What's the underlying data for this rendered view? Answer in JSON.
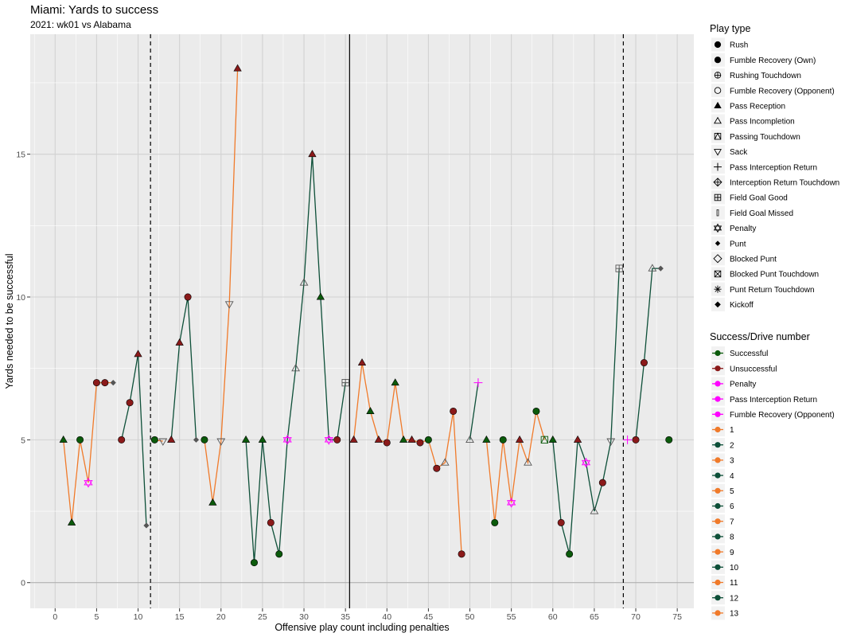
{
  "chart_data": {
    "type": "scatter",
    "title": "Miami: Yards to success",
    "subtitle": "2021: wk01 vs Alabama",
    "xlabel": "Offensive play count including penalties",
    "ylabel": "Yards needed to be successful",
    "xlim": [
      -3,
      77
    ],
    "ylim": [
      -0.9,
      19.2
    ],
    "x_ticks": [
      0,
      5,
      10,
      15,
      20,
      25,
      30,
      35,
      40,
      45,
      50,
      55,
      60,
      65,
      70,
      75
    ],
    "y_ticks": [
      0,
      5,
      10,
      15
    ],
    "grid": true,
    "legend_position": "right",
    "vlines": [
      {
        "x": 11.5,
        "style": "dashed"
      },
      {
        "x": 35.5,
        "style": "solid"
      },
      {
        "x": 68.5,
        "style": "dashed"
      }
    ],
    "colors": {
      "successful": "#0b5a0b",
      "unsuccessful": "#8b1a1a",
      "penalty": "#ff00ff",
      "odd_drive": "#f07a2a",
      "even_drive": "#0d4f38",
      "neutral": "#555555",
      "panel": "#ebebeb",
      "grid": "#ffffff"
    },
    "legend": {
      "play_type_title": "Play type",
      "play_types": [
        {
          "label": "Rush",
          "shape": "circle-filled"
        },
        {
          "label": "Fumble Recovery (Own)",
          "shape": "circle-filled"
        },
        {
          "label": "Rushing Touchdown",
          "shape": "circle-plus"
        },
        {
          "label": "Fumble Recovery (Opponent)",
          "shape": "circle-open"
        },
        {
          "label": "Pass Reception",
          "shape": "triangle-filled"
        },
        {
          "label": "Pass Incompletion",
          "shape": "triangle-open"
        },
        {
          "label": "Passing Touchdown",
          "shape": "square-triangle"
        },
        {
          "label": "Sack",
          "shape": "triangle-down-open"
        },
        {
          "label": "Pass Interception Return",
          "shape": "plus"
        },
        {
          "label": "Interception Return Touchdown",
          "shape": "diamond-plus"
        },
        {
          "label": "Field Goal Good",
          "shape": "square-plus"
        },
        {
          "label": "Field Goal Missed",
          "shape": "thin-bar"
        },
        {
          "label": "Penalty",
          "shape": "star-of-david"
        },
        {
          "label": "Punt",
          "shape": "diamond-filled-small"
        },
        {
          "label": "Blocked Punt",
          "shape": "diamond-open"
        },
        {
          "label": "Blocked Punt Touchdown",
          "shape": "square-x"
        },
        {
          "label": "Punt Return Touchdown",
          "shape": "asterisk"
        },
        {
          "label": "Kickoff",
          "shape": "diamond-filled"
        }
      ],
      "success_title": "Success/Drive number",
      "success_items": [
        {
          "label": "Successful",
          "color": "#0b5a0b"
        },
        {
          "label": "Unsuccessful",
          "color": "#8b1a1a"
        },
        {
          "label": "Penalty",
          "color": "#ff00ff"
        },
        {
          "label": "Pass Interception Return",
          "color": "#ff00ff"
        },
        {
          "label": "Fumble Recovery (Opponent)",
          "color": "#ff00ff"
        },
        {
          "label": "1",
          "color": "#f07a2a"
        },
        {
          "label": "2",
          "color": "#0d4f38"
        },
        {
          "label": "3",
          "color": "#f07a2a"
        },
        {
          "label": "4",
          "color": "#0d4f38"
        },
        {
          "label": "5",
          "color": "#f07a2a"
        },
        {
          "label": "6",
          "color": "#0d4f38"
        },
        {
          "label": "7",
          "color": "#f07a2a"
        },
        {
          "label": "8",
          "color": "#0d4f38"
        },
        {
          "label": "9",
          "color": "#f07a2a"
        },
        {
          "label": "10",
          "color": "#0d4f38"
        },
        {
          "label": "11",
          "color": "#f07a2a"
        },
        {
          "label": "12",
          "color": "#0d4f38"
        },
        {
          "label": "13",
          "color": "#f07a2a"
        }
      ]
    },
    "drives": [
      {
        "drive": 1,
        "x": [
          1,
          2,
          3,
          4,
          5,
          6,
          7
        ],
        "y": [
          5,
          2.1,
          5,
          3.5,
          7,
          7,
          7
        ]
      },
      {
        "drive": 2,
        "x": [
          8,
          9,
          10,
          11
        ],
        "y": [
          5,
          6.3,
          8,
          2
        ]
      },
      {
        "drive": 3,
        "x": [
          12,
          13
        ],
        "y": [
          5,
          4.95
        ]
      },
      {
        "drive": 4,
        "x": [
          14,
          15,
          16,
          17
        ],
        "y": [
          5,
          8.4,
          10,
          5
        ]
      },
      {
        "drive": 5,
        "x": [
          18,
          19,
          20,
          21,
          22
        ],
        "y": [
          5,
          2.8,
          4.95,
          9.75,
          18
        ]
      },
      {
        "drive": 6,
        "x": [
          23,
          24,
          25,
          26,
          27,
          28,
          29,
          30,
          31,
          32,
          33,
          34,
          35
        ],
        "y": [
          5,
          0.7,
          5,
          2.1,
          1,
          5,
          7.5,
          10.5,
          15,
          10,
          5,
          5,
          7
        ]
      },
      {
        "drive": 7,
        "x": [
          36,
          37,
          38,
          39,
          40,
          41,
          42,
          43,
          44,
          45,
          46,
          47,
          48,
          49
        ],
        "y": [
          5,
          7.7,
          6,
          5,
          4.9,
          7,
          5,
          5,
          4.9,
          5,
          4,
          4.2,
          6,
          1
        ]
      },
      {
        "drive": 8,
        "x": [
          50,
          51
        ],
        "y": [
          5,
          7
        ]
      },
      {
        "drive": 9,
        "x": [
          52,
          53,
          54,
          55,
          56,
          57,
          58,
          59
        ],
        "y": [
          5,
          2.1,
          5,
          2.8,
          5,
          4.2,
          6,
          5
        ]
      },
      {
        "drive": 10,
        "x": [
          60,
          61,
          62,
          63,
          64,
          65,
          66,
          67,
          68
        ],
        "y": [
          5,
          2.1,
          1,
          5,
          4.2,
          2.5,
          3.5,
          4.95,
          11
        ]
      },
      {
        "drive": 11,
        "x": [
          69
        ],
        "y": [
          5
        ]
      },
      {
        "drive": 12,
        "x": [
          70,
          71,
          72,
          73
        ],
        "y": [
          5,
          7.7,
          11,
          11
        ]
      },
      {
        "drive": 13,
        "x": [
          74
        ],
        "y": [
          5
        ]
      }
    ],
    "points": [
      {
        "x": 1,
        "y": 5,
        "type": "Pass Reception",
        "result": "Successful"
      },
      {
        "x": 2,
        "y": 2.1,
        "type": "Pass Reception",
        "result": "Successful"
      },
      {
        "x": 3,
        "y": 5,
        "type": "Rush",
        "result": "Successful"
      },
      {
        "x": 4,
        "y": 3.5,
        "type": "Penalty",
        "result": "Penalty"
      },
      {
        "x": 5,
        "y": 7,
        "type": "Rush",
        "result": "Unsuccessful"
      },
      {
        "x": 6,
        "y": 7,
        "type": "Rush",
        "result": "Unsuccessful"
      },
      {
        "x": 7,
        "y": 7,
        "type": "Punt",
        "result": "None"
      },
      {
        "x": 8,
        "y": 5,
        "type": "Rush",
        "result": "Unsuccessful"
      },
      {
        "x": 9,
        "y": 6.3,
        "type": "Rush",
        "result": "Unsuccessful"
      },
      {
        "x": 10,
        "y": 8,
        "type": "Pass Reception",
        "result": "Unsuccessful"
      },
      {
        "x": 11,
        "y": 2,
        "type": "Punt",
        "result": "None"
      },
      {
        "x": 12,
        "y": 5,
        "type": "Rush",
        "result": "Successful"
      },
      {
        "x": 13,
        "y": 4.95,
        "type": "Sack",
        "result": "None"
      },
      {
        "x": 14,
        "y": 5,
        "type": "Pass Reception",
        "result": "Unsuccessful"
      },
      {
        "x": 15,
        "y": 8.4,
        "type": "Pass Reception",
        "result": "Unsuccessful"
      },
      {
        "x": 16,
        "y": 10,
        "type": "Rush",
        "result": "Unsuccessful"
      },
      {
        "x": 17,
        "y": 5,
        "type": "Punt",
        "result": "None"
      },
      {
        "x": 18,
        "y": 5,
        "type": "Rush",
        "result": "Successful"
      },
      {
        "x": 19,
        "y": 2.8,
        "type": "Pass Reception",
        "result": "Successful"
      },
      {
        "x": 20,
        "y": 4.95,
        "type": "Sack",
        "result": "None"
      },
      {
        "x": 21,
        "y": 9.75,
        "type": "Sack",
        "result": "None"
      },
      {
        "x": 22,
        "y": 18,
        "type": "Pass Reception",
        "result": "Unsuccessful"
      },
      {
        "x": 23,
        "y": 5,
        "type": "Pass Reception",
        "result": "Successful"
      },
      {
        "x": 24,
        "y": 0.7,
        "type": "Rush",
        "result": "Successful"
      },
      {
        "x": 25,
        "y": 5,
        "type": "Pass Reception",
        "result": "Successful"
      },
      {
        "x": 26,
        "y": 2.1,
        "type": "Rush",
        "result": "Unsuccessful"
      },
      {
        "x": 27,
        "y": 1,
        "type": "Rush",
        "result": "Successful"
      },
      {
        "x": 28,
        "y": 5,
        "type": "Penalty",
        "result": "Penalty"
      },
      {
        "x": 29,
        "y": 7.5,
        "type": "Pass Incompletion",
        "result": "None"
      },
      {
        "x": 30,
        "y": 10.5,
        "type": "Pass Incompletion",
        "result": "None"
      },
      {
        "x": 31,
        "y": 15,
        "type": "Pass Reception",
        "result": "Unsuccessful"
      },
      {
        "x": 32,
        "y": 10,
        "type": "Pass Reception",
        "result": "Successful"
      },
      {
        "x": 33,
        "y": 5,
        "type": "Penalty",
        "result": "Penalty"
      },
      {
        "x": 34,
        "y": 5,
        "type": "Rush",
        "result": "Unsuccessful"
      },
      {
        "x": 35,
        "y": 7,
        "type": "Field Goal Good",
        "result": "None"
      },
      {
        "x": 36,
        "y": 5,
        "type": "Pass Reception",
        "result": "Unsuccessful"
      },
      {
        "x": 37,
        "y": 7.7,
        "type": "Pass Reception",
        "result": "Unsuccessful"
      },
      {
        "x": 38,
        "y": 6,
        "type": "Pass Reception",
        "result": "Successful"
      },
      {
        "x": 39,
        "y": 5,
        "type": "Pass Reception",
        "result": "Unsuccessful"
      },
      {
        "x": 40,
        "y": 4.9,
        "type": "Rush",
        "result": "Unsuccessful"
      },
      {
        "x": 41,
        "y": 7,
        "type": "Pass Reception",
        "result": "Successful"
      },
      {
        "x": 42,
        "y": 5,
        "type": "Pass Reception",
        "result": "Successful"
      },
      {
        "x": 43,
        "y": 5,
        "type": "Pass Reception",
        "result": "Unsuccessful"
      },
      {
        "x": 44,
        "y": 4.9,
        "type": "Rush",
        "result": "Unsuccessful"
      },
      {
        "x": 45,
        "y": 5,
        "type": "Rush",
        "result": "Successful"
      },
      {
        "x": 46,
        "y": 4,
        "type": "Rush",
        "result": "Unsuccessful"
      },
      {
        "x": 47,
        "y": 4.2,
        "type": "Pass Incompletion",
        "result": "None"
      },
      {
        "x": 48,
        "y": 6,
        "type": "Rush",
        "result": "Unsuccessful"
      },
      {
        "x": 49,
        "y": 1,
        "type": "Rush",
        "result": "Unsuccessful"
      },
      {
        "x": 50,
        "y": 5,
        "type": "Pass Incompletion",
        "result": "None"
      },
      {
        "x": 51,
        "y": 7,
        "type": "Pass Interception Return",
        "result": "Pass Interception Return"
      },
      {
        "x": 52,
        "y": 5,
        "type": "Pass Reception",
        "result": "Successful"
      },
      {
        "x": 53,
        "y": 2.1,
        "type": "Rush",
        "result": "Successful"
      },
      {
        "x": 54,
        "y": 5,
        "type": "Rush",
        "result": "Successful"
      },
      {
        "x": 55,
        "y": 2.8,
        "type": "Penalty",
        "result": "Penalty"
      },
      {
        "x": 56,
        "y": 5,
        "type": "Pass Reception",
        "result": "Unsuccessful"
      },
      {
        "x": 57,
        "y": 4.2,
        "type": "Pass Incompletion",
        "result": "None"
      },
      {
        "x": 58,
        "y": 6,
        "type": "Rush",
        "result": "Successful"
      },
      {
        "x": 59,
        "y": 5,
        "type": "Passing Touchdown",
        "result": "Successful"
      },
      {
        "x": 60,
        "y": 5,
        "type": "Pass Reception",
        "result": "Successful"
      },
      {
        "x": 61,
        "y": 2.1,
        "type": "Rush",
        "result": "Unsuccessful"
      },
      {
        "x": 62,
        "y": 1,
        "type": "Rush",
        "result": "Successful"
      },
      {
        "x": 63,
        "y": 5,
        "type": "Pass Reception",
        "result": "Unsuccessful"
      },
      {
        "x": 64,
        "y": 4.2,
        "type": "Penalty",
        "result": "Penalty"
      },
      {
        "x": 65,
        "y": 2.5,
        "type": "Pass Incompletion",
        "result": "None"
      },
      {
        "x": 66,
        "y": 3.5,
        "type": "Rush",
        "result": "Unsuccessful"
      },
      {
        "x": 67,
        "y": 4.95,
        "type": "Sack",
        "result": "None"
      },
      {
        "x": 68,
        "y": 11,
        "type": "Field Goal Good",
        "result": "None"
      },
      {
        "x": 69,
        "y": 5,
        "type": "Pass Interception Return",
        "result": "Pass Interception Return"
      },
      {
        "x": 70,
        "y": 5,
        "type": "Rush",
        "result": "Unsuccessful"
      },
      {
        "x": 71,
        "y": 7.7,
        "type": "Rush",
        "result": "Unsuccessful"
      },
      {
        "x": 72,
        "y": 11,
        "type": "Pass Incompletion",
        "result": "None"
      },
      {
        "x": 73,
        "y": 11,
        "type": "Punt",
        "result": "None"
      },
      {
        "x": 74,
        "y": 5,
        "type": "Rush",
        "result": "Successful"
      }
    ]
  }
}
